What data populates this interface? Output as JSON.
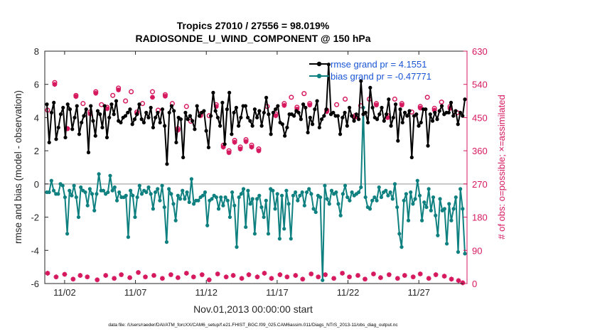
{
  "chart_data": {
    "type": "line",
    "title_line1": "Tropics 27010 / 27556 = 98.019%",
    "title_line2": "RADIOSONDE_U_WIND_COMPONENT @ 150 hPa",
    "xlabel": "Nov.01,2013 00:00:00 start",
    "ylabel_left": "rmse and bias (model - observation)",
    "ylabel_right": "# of obs: o=possible; ×=assimilated",
    "footnote": "data file: /Users/raeder/DAI/ATM_forcXX/CAM6_setup/f.e21.FHIST_BGC.f09_025.CAM6assim.011/Diags_NTrS_2013-11/obs_diag_output.nc",
    "xlim": [
      0.6,
      30.4
    ],
    "ylim_left": [
      -6,
      8
    ],
    "ylim_right": [
      0,
      630
    ],
    "x_tick_values": [
      2,
      7,
      12,
      17,
      22,
      27
    ],
    "x_tick_labels": [
      "11/02",
      "11/07",
      "11/12",
      "11/17",
      "11/22",
      "11/27"
    ],
    "y_left_ticks": [
      -6,
      -4,
      -2,
      0,
      2,
      4,
      6,
      8
    ],
    "y_left_tick_labels": [
      "-6",
      "-4",
      "-2",
      "0",
      "2",
      "4",
      "6",
      "8"
    ],
    "y_right_ticks": [
      0,
      90,
      180,
      270,
      360,
      450,
      540,
      630
    ],
    "y_right_tick_labels": [
      "0",
      "90",
      "180",
      "270",
      "360",
      "450",
      "540",
      "630"
    ],
    "legend_position": "top-right",
    "colors": {
      "rmse": "#000000",
      "bias": "#0f8080",
      "obs": "#d6195f",
      "legend_text": "#1a55d6",
      "zero_line": "#b8b8b8"
    },
    "series": [
      {
        "name": "rmse grand pr = 4.1551",
        "color": "#000000",
        "values": [
          4.8,
          2.5,
          4.3,
          4.9,
          2.7,
          3.4,
          4.2,
          4.6,
          2.8,
          4.8,
          4.5,
          3.3,
          4.0,
          4.7,
          3.0,
          3.7,
          4.1,
          4.5,
          1.9,
          4.7,
          3.8,
          2.9,
          4.4,
          4.2,
          3.4,
          4.7,
          2.8,
          4.0,
          4.8,
          4.2,
          5.0,
          3.8,
          3.7,
          4.0,
          4.1,
          4.3,
          4.5,
          3.6,
          3.9,
          4.2,
          4.8,
          3.9,
          3.7,
          4.3,
          4.0,
          4.6,
          3.4,
          4.0,
          4.3,
          3.7,
          4.5,
          3.5,
          1.2,
          4.3,
          4.7,
          4.4,
          2.5,
          4.0,
          3.9,
          1.6,
          4.3,
          3.9,
          4.1,
          3.8,
          3.3,
          4.7,
          4.1,
          4.3,
          4.4,
          3.2,
          2.2,
          4.1,
          5.5,
          4.4,
          4.0,
          3.5,
          4.9,
          2.4,
          4.5,
          5.5,
          3.0,
          4.3,
          4.6,
          3.5,
          4.0,
          4.7,
          4.7,
          4.0,
          3.8,
          3.5,
          4.5,
          4.0,
          4.4,
          3.5,
          4.3,
          5.2,
          4.2,
          3.0,
          4.3,
          4.5,
          4.7,
          3.7,
          3.6,
          2.9,
          3.4,
          4.2,
          4.2,
          4.1,
          4.4,
          4.3,
          3.9,
          4.8,
          4.6,
          3.1,
          4.0,
          3.6,
          4.5,
          5.0,
          3.4,
          3.9,
          4.1,
          4.5,
          7.2,
          4.2,
          4.3,
          4.1,
          4.1,
          3.0,
          4.0,
          4.3,
          3.5,
          4.6,
          4.1,
          3.8,
          4.2,
          3.9,
          6.2,
          4.2,
          4.3,
          3.7,
          5.8,
          4.6,
          4.0,
          3.9,
          4.2,
          4.6,
          3.8,
          4.2,
          5.1,
          3.5,
          4.0,
          4.8,
          2.6,
          4.5,
          3.7,
          4.3,
          4.1,
          4.4,
          1.6,
          4.1,
          4.2,
          3.5,
          3.7,
          4.5,
          4.5,
          2.3,
          4.2,
          3.8,
          4.3,
          3.9,
          4.4,
          4.7,
          4.2,
          4.3,
          4.3,
          4.9,
          4.1,
          4.4,
          3.6,
          4.3,
          4.1,
          5.1
        ]
      },
      {
        "name": "bias grand pr = -0.47771",
        "color": "#0f8080",
        "values": [
          -0.5,
          -0.5,
          0.2,
          -0.4,
          -0.6,
          -0.6,
          0.0,
          -0.1,
          -0.8,
          -3.0,
          -0.4,
          -0.7,
          -0.1,
          -0.8,
          -2.0,
          -0.2,
          -0.4,
          -0.5,
          -1.3,
          -0.3,
          -0.6,
          -1.6,
          -0.6,
          0.6,
          -0.4,
          -0.4,
          -0.6,
          -0.5,
          0.5,
          -0.4,
          -0.2,
          -1.0,
          -0.5,
          -0.8,
          -0.8,
          -0.7,
          -3.2,
          -0.4,
          -0.7,
          -2.0,
          -0.8,
          -0.1,
          -0.6,
          -0.4,
          -0.5,
          -0.2,
          -0.6,
          -1.5,
          -0.5,
          -0.3,
          -1.0,
          -0.1,
          -1.4,
          -3.5,
          -0.3,
          -0.6,
          -1.2,
          -2.2,
          -0.7,
          -0.9,
          -0.4,
          -0.9,
          -0.5,
          -1.1,
          0.3,
          -1.2,
          -1.0,
          -1.0,
          -0.8,
          -0.7,
          -0.5,
          -2.5,
          -1.0,
          -0.9,
          -0.7,
          -0.8,
          -1.5,
          -0.8,
          -1.3,
          -0.8,
          -1.0,
          -2.0,
          -0.5,
          -1.3,
          -3.8,
          -0.8,
          -0.6,
          -0.3,
          -2.6,
          -0.4,
          -1.2,
          -0.9,
          -3.0,
          -0.9,
          -0.7,
          -1.4,
          -2.0,
          -1.0,
          -3.0,
          -0.3,
          -0.4,
          -1.5,
          -0.6,
          -3.3,
          -0.7,
          -2.7,
          -0.4,
          -1.2,
          -3.3,
          -0.7,
          -0.5,
          -1.0,
          -0.7,
          -0.5,
          -1.3,
          -0.5,
          -0.3,
          -0.6,
          -1.5,
          -1.7,
          -0.7,
          -0.8,
          -5.8,
          -0.1,
          -0.9,
          -1.2,
          -0.4,
          -0.6,
          -0.5,
          -1.2,
          -1.9,
          -0.6,
          -0.1,
          -0.8,
          -1.0,
          -0.5,
          -0.7,
          -0.6,
          -0.5,
          -0.2,
          4.6,
          -0.8,
          -1.4,
          -1.5,
          -1.0,
          -0.8,
          -1.0,
          -0.2,
          -0.8,
          -0.5,
          -0.4,
          -0.7,
          -0.5,
          -0.9,
          0.0,
          -1.4,
          -3.0,
          -3.8,
          -1.0,
          -0.6,
          -2.2,
          -0.5,
          -1.2,
          -0.9,
          0.2,
          -0.7,
          -2.2,
          -1.1,
          -1.4,
          -0.3,
          -1.6,
          -0.8,
          -1.9,
          -3.1,
          -0.9,
          -1.6,
          -1.5,
          -3.6,
          -1.2,
          -2.2,
          -1.5,
          -0.8,
          -4.1,
          -0.3,
          -1.5,
          -4.2
        ]
      }
    ],
    "obs_possible": [
      {
        "x": 0.8,
        "y": 470
      },
      {
        "x": 1.3,
        "y": 545
      },
      {
        "x": 2.2,
        "y": 420
      },
      {
        "x": 2.8,
        "y": 510
      },
      {
        "x": 3.3,
        "y": 488
      },
      {
        "x": 3.8,
        "y": 465
      },
      {
        "x": 4.2,
        "y": 520
      },
      {
        "x": 4.6,
        "y": 485
      },
      {
        "x": 5.0,
        "y": 478
      },
      {
        "x": 5.4,
        "y": 510
      },
      {
        "x": 5.8,
        "y": 530
      },
      {
        "x": 6.3,
        "y": 495
      },
      {
        "x": 6.7,
        "y": 520
      },
      {
        "x": 7.1,
        "y": 465
      },
      {
        "x": 7.5,
        "y": 488
      },
      {
        "x": 8.2,
        "y": 520
      },
      {
        "x": 8.6,
        "y": 470
      },
      {
        "x": 9.1,
        "y": 512
      },
      {
        "x": 9.6,
        "y": 488
      },
      {
        "x": 10.0,
        "y": 420
      },
      {
        "x": 10.6,
        "y": 480
      },
      {
        "x": 10.9,
        "y": 440
      },
      {
        "x": 11.6,
        "y": 460
      },
      {
        "x": 12.2,
        "y": 455
      },
      {
        "x": 12.7,
        "y": 485
      },
      {
        "x": 13.2,
        "y": 375
      },
      {
        "x": 13.6,
        "y": 360
      },
      {
        "x": 14.0,
        "y": 388
      },
      {
        "x": 14.4,
        "y": 370
      },
      {
        "x": 14.8,
        "y": 390
      },
      {
        "x": 15.2,
        "y": 375
      },
      {
        "x": 15.7,
        "y": 365
      },
      {
        "x": 16.3,
        "y": 480
      },
      {
        "x": 16.9,
        "y": 460
      },
      {
        "x": 17.5,
        "y": 488
      },
      {
        "x": 18.0,
        "y": 505
      },
      {
        "x": 18.4,
        "y": 478
      },
      {
        "x": 18.9,
        "y": 515
      },
      {
        "x": 19.3,
        "y": 488
      },
      {
        "x": 20.5,
        "y": 470
      },
      {
        "x": 21.2,
        "y": 485
      },
      {
        "x": 21.8,
        "y": 500
      },
      {
        "x": 22.5,
        "y": 455
      },
      {
        "x": 22.9,
        "y": 482
      },
      {
        "x": 23.5,
        "y": 500
      },
      {
        "x": 24.0,
        "y": 488
      },
      {
        "x": 24.8,
        "y": 455
      },
      {
        "x": 25.3,
        "y": 500
      },
      {
        "x": 25.8,
        "y": 488
      },
      {
        "x": 26.5,
        "y": 465
      },
      {
        "x": 27.1,
        "y": 480
      },
      {
        "x": 27.6,
        "y": 505
      },
      {
        "x": 28.1,
        "y": 475
      },
      {
        "x": 28.6,
        "y": 492
      },
      {
        "x": 29.2,
        "y": 480
      },
      {
        "x": 29.7,
        "y": 463
      }
    ],
    "obs_assimilated": [
      {
        "x": 0.8,
        "y": 28
      },
      {
        "x": 1.3,
        "y": 540
      },
      {
        "x": 1.4,
        "y": 18
      },
      {
        "x": 2.0,
        "y": 25
      },
      {
        "x": 2.2,
        "y": 420
      },
      {
        "x": 2.6,
        "y": 12
      },
      {
        "x": 2.8,
        "y": 507
      },
      {
        "x": 3.1,
        "y": 22
      },
      {
        "x": 3.8,
        "y": 460
      },
      {
        "x": 3.6,
        "y": 18
      },
      {
        "x": 4.2,
        "y": 516
      },
      {
        "x": 4.3,
        "y": 10
      },
      {
        "x": 4.9,
        "y": 22
      },
      {
        "x": 5.0,
        "y": 474
      },
      {
        "x": 5.5,
        "y": 14
      },
      {
        "x": 5.8,
        "y": 525
      },
      {
        "x": 6.0,
        "y": 24
      },
      {
        "x": 6.6,
        "y": 16
      },
      {
        "x": 7.1,
        "y": 461
      },
      {
        "x": 7.2,
        "y": 30
      },
      {
        "x": 7.7,
        "y": 18
      },
      {
        "x": 8.2,
        "y": 505
      },
      {
        "x": 8.3,
        "y": 22
      },
      {
        "x": 8.9,
        "y": 14
      },
      {
        "x": 9.1,
        "y": 508
      },
      {
        "x": 9.5,
        "y": 24
      },
      {
        "x": 10.0,
        "y": 416
      },
      {
        "x": 10.0,
        "y": 16
      },
      {
        "x": 10.6,
        "y": 28
      },
      {
        "x": 11.1,
        "y": 18
      },
      {
        "x": 11.6,
        "y": 455
      },
      {
        "x": 11.7,
        "y": 24
      },
      {
        "x": 12.2,
        "y": 10
      },
      {
        "x": 12.7,
        "y": 480
      },
      {
        "x": 12.8,
        "y": 26
      },
      {
        "x": 13.2,
        "y": 370
      },
      {
        "x": 13.4,
        "y": 18
      },
      {
        "x": 13.6,
        "y": 355
      },
      {
        "x": 13.9,
        "y": 22
      },
      {
        "x": 14.0,
        "y": 383
      },
      {
        "x": 14.4,
        "y": 365
      },
      {
        "x": 14.5,
        "y": 14
      },
      {
        "x": 14.8,
        "y": 385
      },
      {
        "x": 15.0,
        "y": 24
      },
      {
        "x": 15.2,
        "y": 370
      },
      {
        "x": 15.6,
        "y": 18
      },
      {
        "x": 15.7,
        "y": 360
      },
      {
        "x": 16.1,
        "y": 28
      },
      {
        "x": 16.6,
        "y": 14
      },
      {
        "x": 16.9,
        "y": 455
      },
      {
        "x": 17.2,
        "y": 24
      },
      {
        "x": 17.5,
        "y": 483
      },
      {
        "x": 17.7,
        "y": 18
      },
      {
        "x": 18.3,
        "y": 22
      },
      {
        "x": 18.4,
        "y": 473
      },
      {
        "x": 18.8,
        "y": 12
      },
      {
        "x": 19.3,
        "y": 484
      },
      {
        "x": 19.4,
        "y": 26
      },
      {
        "x": 19.9,
        "y": 18
      },
      {
        "x": 20.4,
        "y": 24
      },
      {
        "x": 20.5,
        "y": 466
      },
      {
        "x": 21.0,
        "y": 14
      },
      {
        "x": 21.6,
        "y": 28
      },
      {
        "x": 22.1,
        "y": 18
      },
      {
        "x": 22.5,
        "y": 451
      },
      {
        "x": 22.7,
        "y": 22
      },
      {
        "x": 23.2,
        "y": 12
      },
      {
        "x": 23.8,
        "y": 26
      },
      {
        "x": 24.0,
        "y": 484
      },
      {
        "x": 24.3,
        "y": 16
      },
      {
        "x": 24.8,
        "y": 450
      },
      {
        "x": 24.9,
        "y": 24
      },
      {
        "x": 25.5,
        "y": 14
      },
      {
        "x": 25.8,
        "y": 484
      },
      {
        "x": 26.0,
        "y": 22
      },
      {
        "x": 26.6,
        "y": 18
      },
      {
        "x": 27.1,
        "y": 476
      },
      {
        "x": 27.1,
        "y": 26
      },
      {
        "x": 27.7,
        "y": 14
      },
      {
        "x": 28.1,
        "y": 470
      },
      {
        "x": 28.2,
        "y": 24
      },
      {
        "x": 28.8,
        "y": 20
      },
      {
        "x": 29.2,
        "y": 475
      },
      {
        "x": 29.3,
        "y": 12
      },
      {
        "x": 29.8,
        "y": 8
      },
      {
        "x": 30.1,
        "y": 2
      }
    ]
  }
}
